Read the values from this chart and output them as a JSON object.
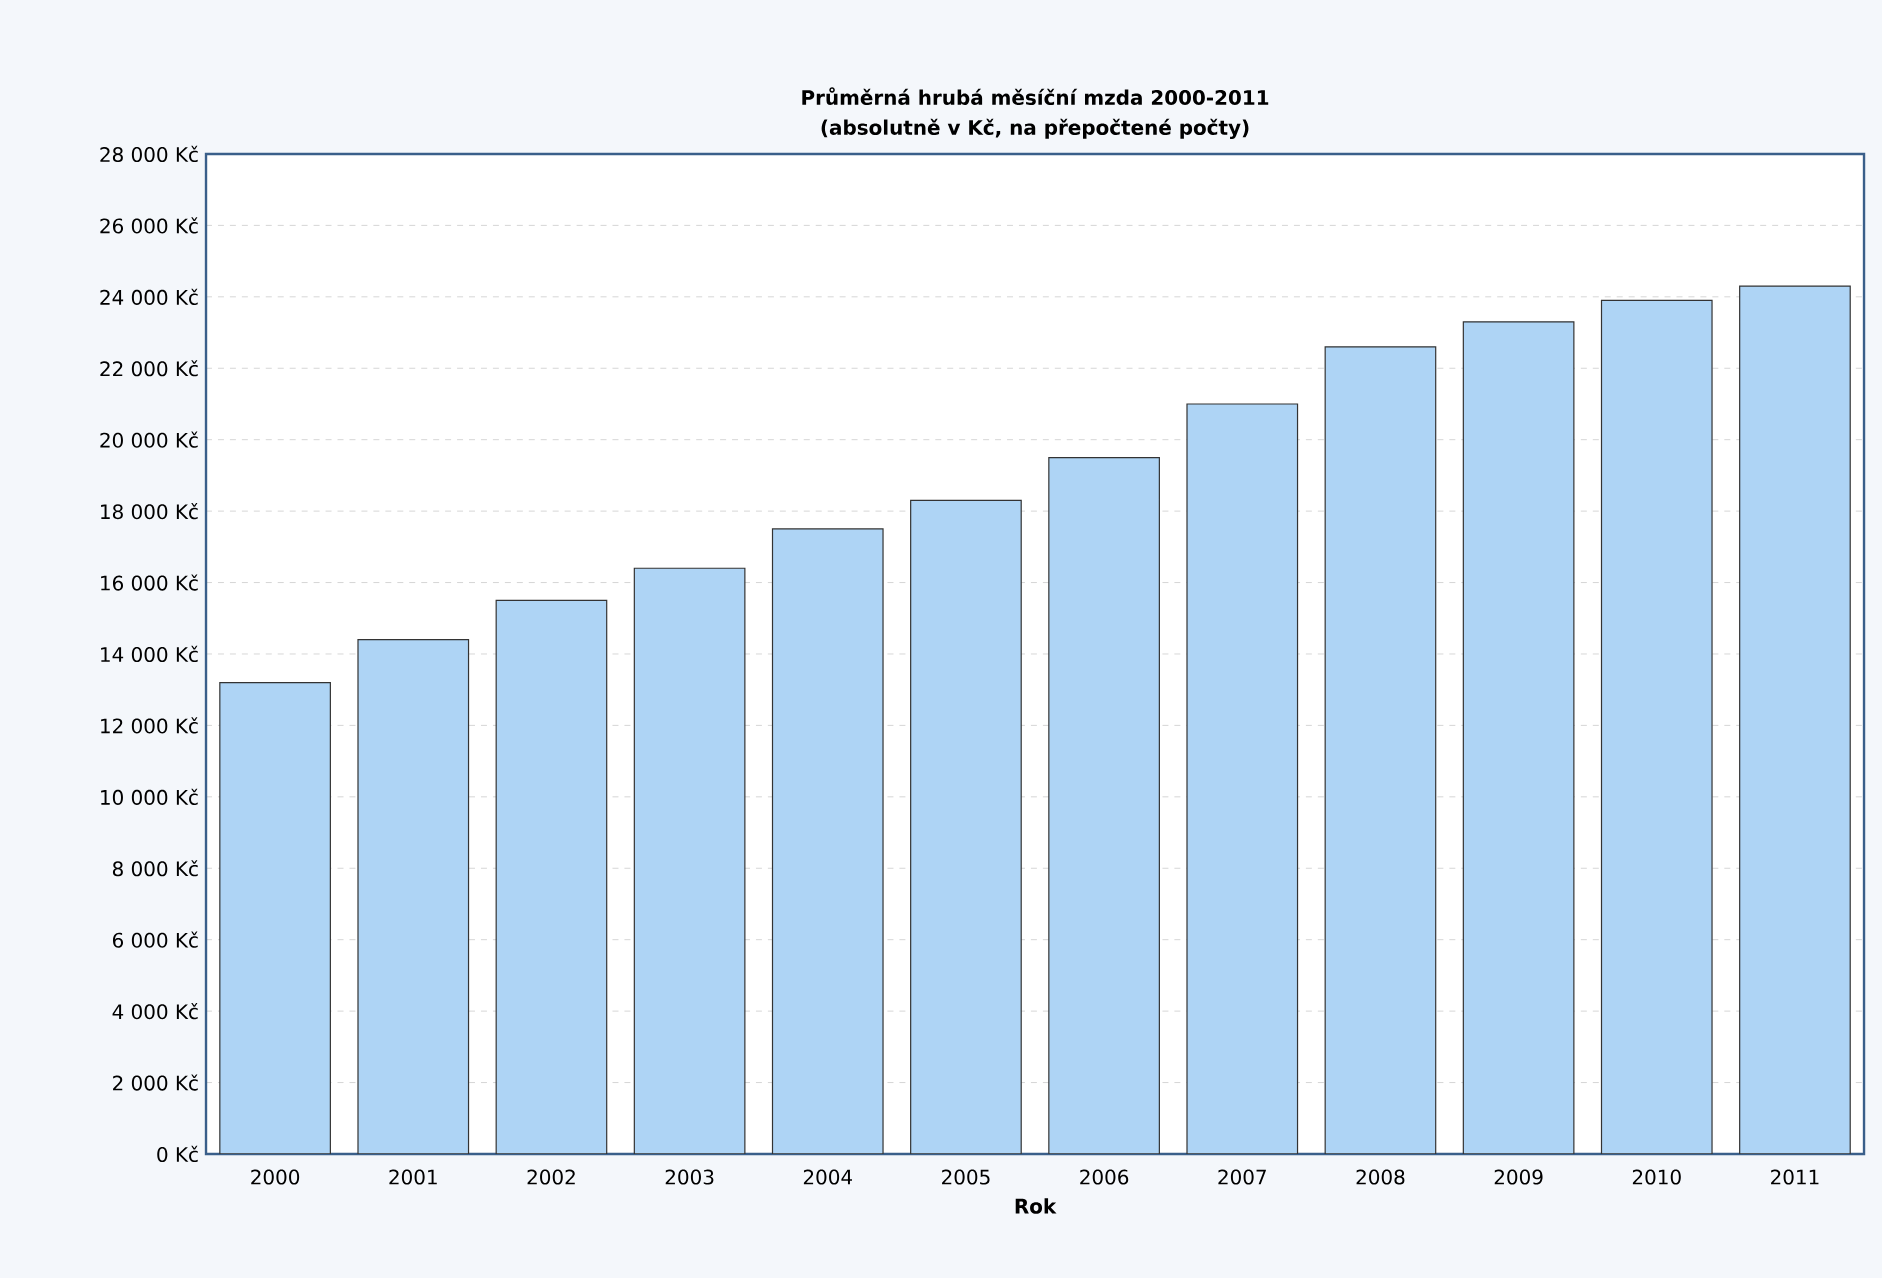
{
  "chart_data": {
    "type": "bar",
    "title": "Průměrná hrubá měsíční mzda 2000-2011",
    "subtitle": "(absolutně v Kč, na přepočtené počty)",
    "xlabel": "Rok",
    "categories": [
      "2000",
      "2001",
      "2002",
      "2003",
      "2004",
      "2005",
      "2006",
      "2007",
      "2008",
      "2009",
      "2010",
      "2011"
    ],
    "values": [
      13200,
      14400,
      15500,
      16400,
      17500,
      18300,
      19500,
      21000,
      22600,
      23300,
      23900,
      24300
    ],
    "color": "#aed4f5",
    "ylim": [
      0,
      28000
    ],
    "yticks": [
      {
        "value": 0,
        "label": "0 Kč"
      },
      {
        "value": 2000,
        "label": "2 000 Kč"
      },
      {
        "value": 4000,
        "label": "4 000 Kč"
      },
      {
        "value": 6000,
        "label": "6 000 Kč"
      },
      {
        "value": 8000,
        "label": "8 000 Kč"
      },
      {
        "value": 10000,
        "label": "10 000 Kč"
      },
      {
        "value": 12000,
        "label": "12 000 Kč"
      },
      {
        "value": 14000,
        "label": "14 000 Kč"
      },
      {
        "value": 16000,
        "label": "16 000 Kč"
      },
      {
        "value": 18000,
        "label": "18 000 Kč"
      },
      {
        "value": 20000,
        "label": "20 000 Kč"
      },
      {
        "value": 22000,
        "label": "22 000 Kč"
      },
      {
        "value": 24000,
        "label": "24 000 Kč"
      },
      {
        "value": 26000,
        "label": "26 000 Kč"
      },
      {
        "value": 28000,
        "label": "28 000 Kč"
      }
    ],
    "grid": "y"
  }
}
